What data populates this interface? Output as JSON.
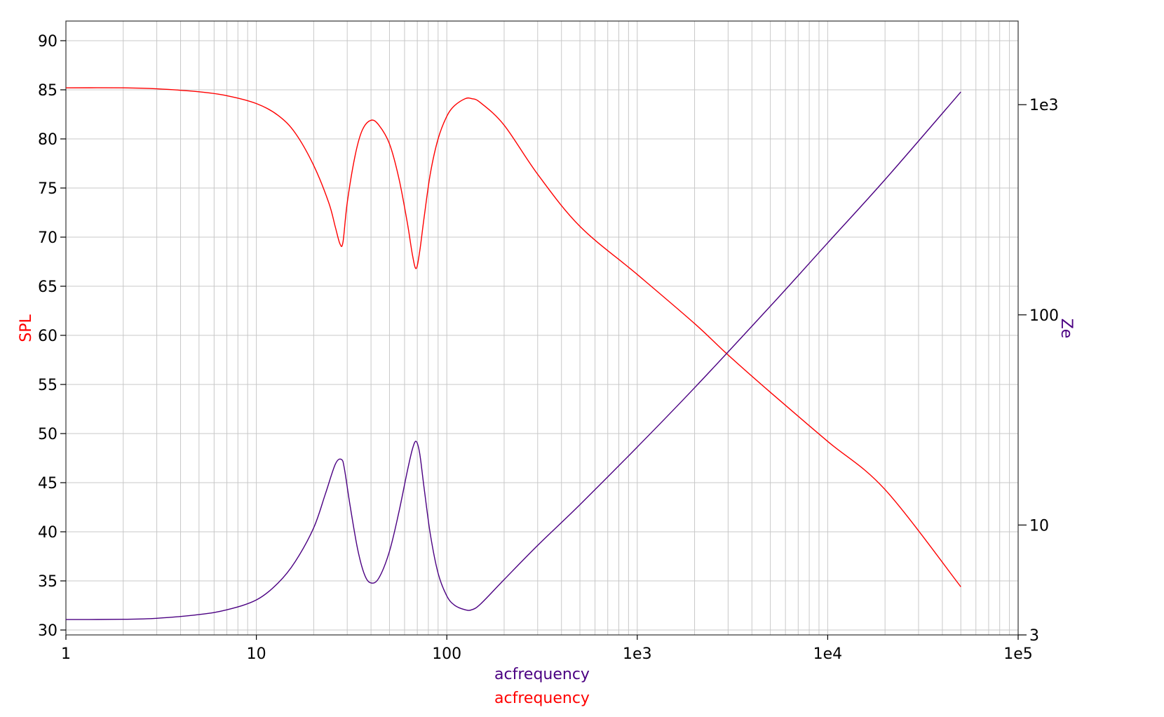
{
  "chart_data": {
    "type": "line",
    "x_axis": {
      "scale": "log",
      "range": [
        1,
        100000
      ],
      "tick_labels": [
        "1",
        "10",
        "100",
        "1e3",
        "1e4",
        "1e5"
      ],
      "labels": [
        "acfrequency",
        "acfrequency"
      ],
      "label_colors": [
        "#4b0082",
        "#ff0000"
      ]
    },
    "y_left": {
      "label": "SPL",
      "color": "#ff0000",
      "scale": "linear",
      "range": [
        29.5,
        92
      ],
      "ticks": [
        30,
        35,
        40,
        45,
        50,
        55,
        60,
        65,
        70,
        75,
        80,
        85,
        90
      ],
      "tick_labels": [
        "30",
        "35",
        "40",
        "45",
        "50",
        "55",
        "60",
        "65",
        "70",
        "75",
        "80",
        "85",
        "90"
      ]
    },
    "y_right": {
      "label": "Ze",
      "color": "#4b0082",
      "scale": "log",
      "range": [
        3,
        2500
      ],
      "ticks": [
        3,
        10,
        100,
        1000
      ],
      "tick_labels": [
        "3",
        "10",
        "100",
        "1e3"
      ]
    },
    "grid": true,
    "series": [
      {
        "axis": "left",
        "color": "#ff0000",
        "x": [
          1,
          2,
          3,
          5,
          7,
          10,
          13,
          16,
          20,
          24,
          26,
          27.5,
          28.5,
          30,
          33,
          36,
          40,
          44,
          50,
          56,
          62,
          66,
          69,
          72,
          76,
          82,
          90,
          100,
          110,
          125,
          135,
          150,
          200,
          300,
          500,
          1000,
          2000,
          3000,
          5000,
          10000,
          20000,
          50000
        ],
        "values": [
          85.2,
          85.2,
          85.1,
          84.8,
          84.4,
          83.6,
          82.4,
          80.6,
          77.3,
          73.5,
          71.0,
          69.3,
          69.5,
          73.5,
          78.3,
          80.9,
          81.9,
          81.4,
          79.5,
          76.0,
          71.5,
          68.2,
          66.8,
          68.5,
          72.0,
          76.5,
          80.0,
          82.3,
          83.4,
          84.1,
          84.1,
          83.7,
          81.4,
          76.4,
          71.1,
          66.2,
          61.2,
          58.0,
          54.2,
          49.2,
          44.3,
          34.4
        ]
      },
      {
        "axis": "right",
        "color": "#4b0082",
        "x": [
          1,
          2,
          3,
          5,
          7,
          10,
          13,
          16,
          20,
          23,
          26,
          28,
          29,
          31,
          34,
          37,
          40,
          44,
          50,
          56,
          62,
          66,
          69,
          72,
          76,
          82,
          90,
          100,
          110,
          125,
          135,
          150,
          200,
          300,
          500,
          1000,
          2000,
          5000,
          10000,
          20000,
          50000
        ],
        "values": [
          3.55,
          3.56,
          3.6,
          3.75,
          3.95,
          4.4,
          5.3,
          6.7,
          9.7,
          14.0,
          19.5,
          20.5,
          18.5,
          12.5,
          7.7,
          5.8,
          5.3,
          5.6,
          7.5,
          11.5,
          18.0,
          23.0,
          25.0,
          22.0,
          15.0,
          9.0,
          5.9,
          4.6,
          4.15,
          3.95,
          3.95,
          4.2,
          5.5,
          8.0,
          12.5,
          23.5,
          45.0,
          110.0,
          220.0,
          440.0,
          1150.0
        ]
      }
    ]
  }
}
